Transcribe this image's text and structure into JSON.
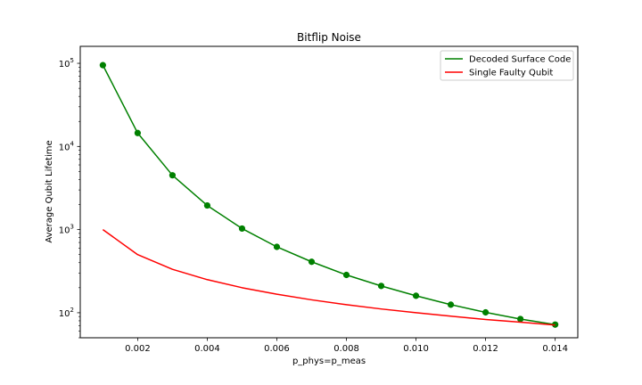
{
  "chart_data": {
    "type": "line",
    "title": "Bitflip Noise",
    "xlabel": "p_phys=p_meas",
    "ylabel": "Average Qubit Lifetime",
    "yscale": "log",
    "xlim": [
      0.00035,
      0.01465
    ],
    "ylim": [
      50,
      160000
    ],
    "grid": false,
    "legend_position": "top-right",
    "x_ticks": [
      0.002,
      0.004,
      0.006,
      0.008,
      0.01,
      0.012,
      0.014
    ],
    "x_tick_labels": [
      "0.002",
      "0.004",
      "0.006",
      "0.008",
      "0.010",
      "0.012",
      "0.014"
    ],
    "y_ticks": [
      {
        "value": 100,
        "base": "10",
        "exp": "2"
      },
      {
        "value": 1000,
        "base": "10",
        "exp": "3"
      },
      {
        "value": 10000,
        "base": "10",
        "exp": "4"
      },
      {
        "value": 100000,
        "base": "10",
        "exp": "5"
      }
    ],
    "series": [
      {
        "name": "Decoded Surface Code",
        "color": "#008000",
        "markers": true,
        "x": [
          0.001,
          0.002,
          0.003,
          0.004,
          0.005,
          0.006,
          0.007,
          0.008,
          0.009,
          0.01,
          0.011,
          0.012,
          0.013,
          0.014
        ],
        "y": [
          95000,
          14500,
          4500,
          1950,
          1030,
          620,
          410,
          285,
          210,
          160,
          125,
          101,
          84,
          72
        ]
      },
      {
        "name": "Single Faulty Qubit",
        "color": "#ff0000",
        "markers": false,
        "x": [
          0.001,
          0.002,
          0.003,
          0.004,
          0.005,
          0.006,
          0.007,
          0.008,
          0.009,
          0.01,
          0.011,
          0.012,
          0.013,
          0.014
        ],
        "y": [
          1000,
          500,
          333,
          250,
          200,
          167,
          143,
          125,
          111,
          100,
          91,
          83,
          77,
          71
        ]
      }
    ]
  }
}
